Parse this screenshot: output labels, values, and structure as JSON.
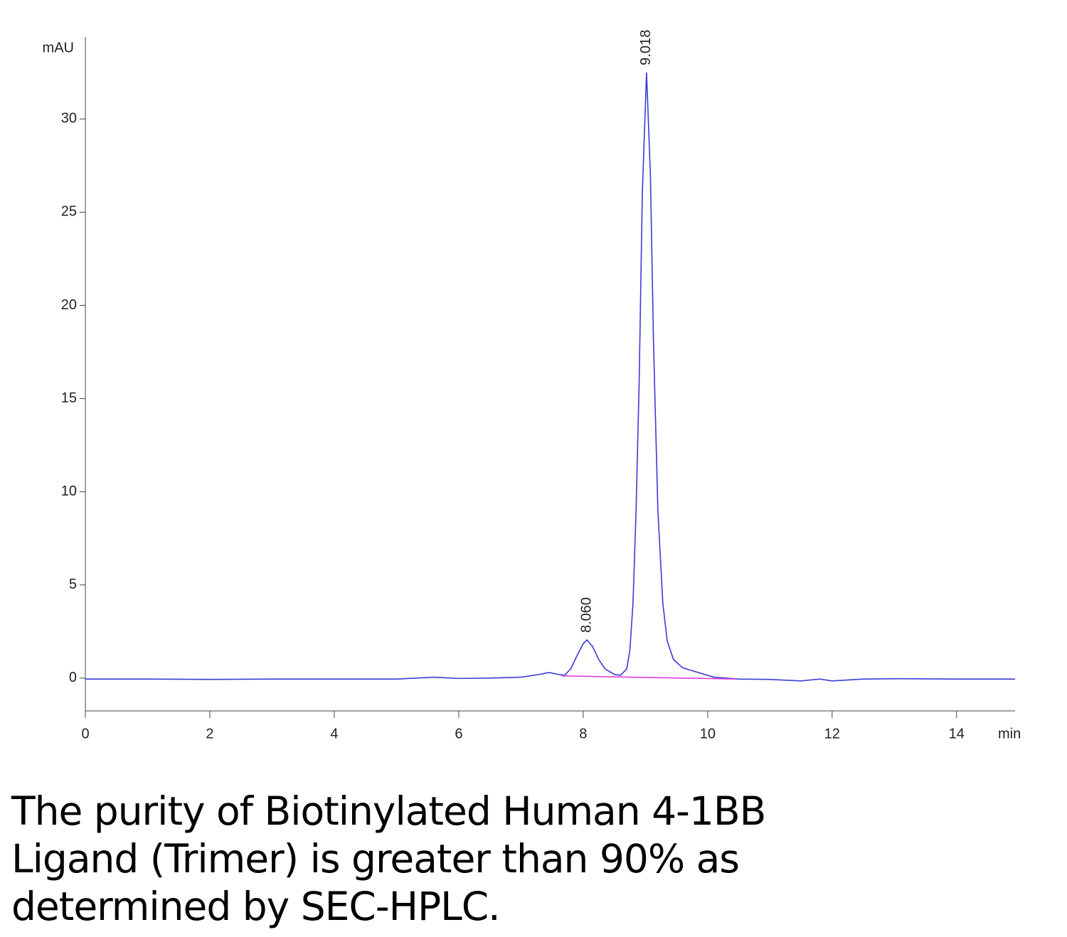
{
  "chart_data": {
    "type": "line",
    "x_label": "min",
    "y_label": "mAU",
    "xlim": [
      0,
      14.94
    ],
    "ylim": [
      -1.76,
      34.4
    ],
    "xticks": [
      0,
      2,
      4,
      6,
      8,
      10,
      12,
      14
    ],
    "yticks": [
      0,
      5,
      10,
      15,
      20,
      25,
      30
    ],
    "series": [
      {
        "color": "#3b3bd6",
        "x": [
          0,
          1,
          2,
          3,
          4,
          5,
          5.6,
          6,
          6.5,
          7,
          7.3,
          7.45,
          7.6,
          7.7,
          7.8,
          7.9,
          8.0,
          8.06,
          8.15,
          8.25,
          8.35,
          8.5,
          8.6,
          8.7,
          8.75,
          8.8,
          8.85,
          8.9,
          8.95,
          9.018,
          9.08,
          9.13,
          9.2,
          9.28,
          9.35,
          9.45,
          9.6,
          9.75,
          9.9,
          10.1,
          10.5,
          11,
          11.5,
          11.8,
          12,
          12.5,
          13,
          14,
          14.94
        ],
        "values": [
          -0.05,
          -0.05,
          -0.07,
          -0.05,
          -0.05,
          -0.05,
          0.05,
          -0.02,
          0.0,
          0.05,
          0.2,
          0.3,
          0.2,
          0.15,
          0.5,
          1.2,
          1.85,
          2.05,
          1.7,
          1.0,
          0.5,
          0.2,
          0.15,
          0.5,
          1.5,
          4,
          9,
          16,
          26,
          32.5,
          27,
          18,
          9,
          4,
          2,
          1.0,
          0.55,
          0.4,
          0.25,
          0.05,
          -0.05,
          -0.07,
          -0.15,
          -0.05,
          -0.15,
          -0.05,
          -0.03,
          -0.05,
          -0.05
        ]
      },
      {
        "color": "#e040e0",
        "x": [
          7.65,
          10.45
        ],
        "values": [
          0.12,
          -0.05
        ]
      }
    ],
    "annotations": [
      {
        "x": {
          "value": 8.06,
          "label": "8.060"
        },
        "y": 2.05
      },
      {
        "x": {
          "value": 9.018,
          "label": "9.018"
        },
        "y": 32.5
      }
    ]
  },
  "caption": [
    "The purity of Biotinylated Human 4-1BB",
    "Ligand (Trimer) is greater than 90% as",
    "determined by SEC-HPLC."
  ]
}
